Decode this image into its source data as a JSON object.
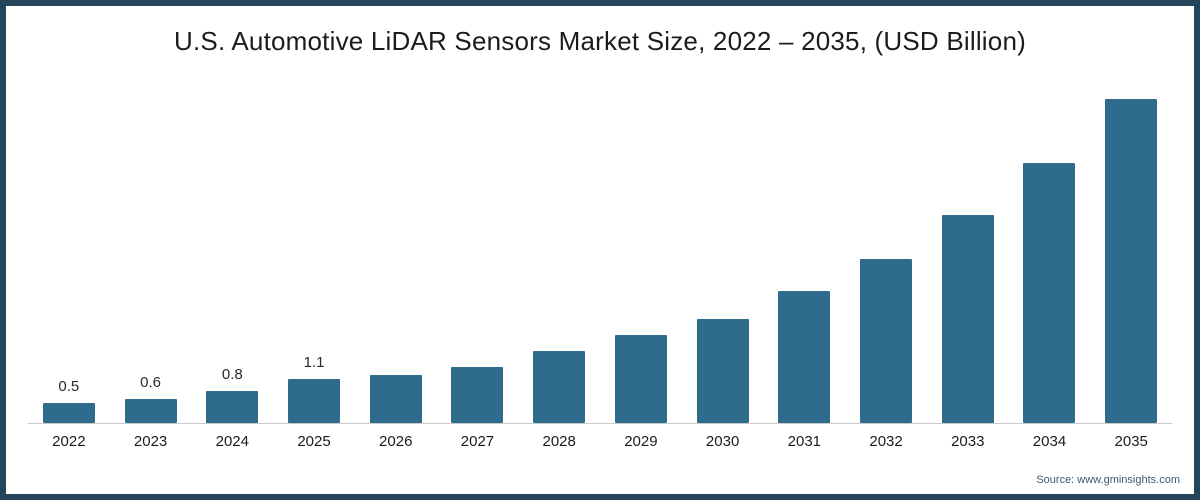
{
  "chart": {
    "title": "U.S. Automotive LiDAR Sensors Market Size, 2022 – 2035, (USD Billion)",
    "source": "Source: www.gminsights.com"
  },
  "chart_data": {
    "type": "bar",
    "title": "U.S. Automotive LiDAR Sensors Market Size, 2022 – 2035, (USD Billion)",
    "xlabel": "",
    "ylabel": "USD Billion",
    "categories": [
      "2022",
      "2023",
      "2024",
      "2025",
      "2026",
      "2027",
      "2028",
      "2029",
      "2030",
      "2031",
      "2032",
      "2033",
      "2034",
      "2035"
    ],
    "values": [
      0.5,
      0.6,
      0.8,
      1.1,
      1.2,
      1.4,
      1.8,
      2.2,
      2.6,
      3.3,
      4.1,
      5.2,
      6.5,
      8.1
    ],
    "data_labels": [
      "0.5",
      "0.6",
      "0.8",
      "1.1",
      "",
      "",
      "",
      "",
      "",
      "",
      "",
      "",
      "",
      ""
    ],
    "ylim": [
      0,
      8.5
    ],
    "grid": false,
    "legend": false,
    "bar_color": "#2e6b8c",
    "frame_color": "#24455c"
  }
}
